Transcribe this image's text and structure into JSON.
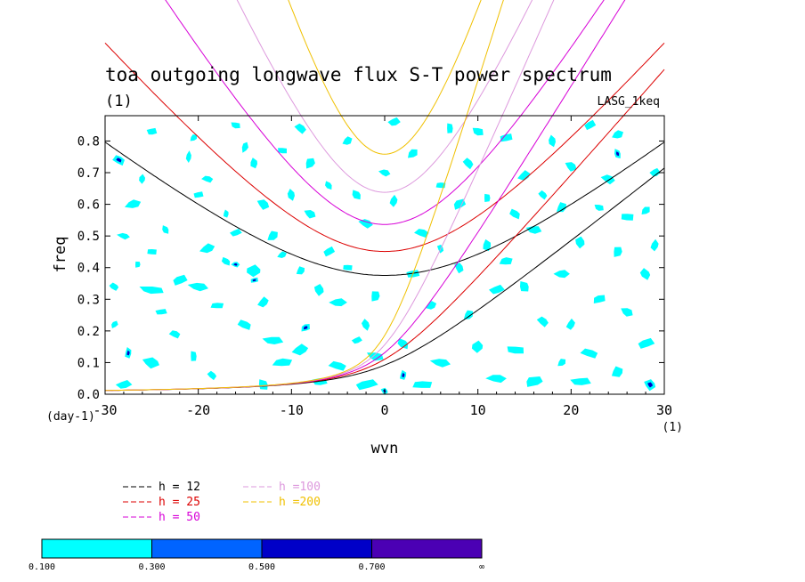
{
  "chart_data": {
    "type": "heatmap",
    "title": "toa outgoing longwave flux S-T power spectrum",
    "subtitle": "(1)",
    "model_label": "LASG_1keq",
    "xlabel": "wvn",
    "ylabel": "freq",
    "x_unit": "(1)",
    "y_unit": "(day-1)",
    "xlim": [
      -30,
      30
    ],
    "ylim": [
      0,
      0.88
    ],
    "x_ticks": [
      -30,
      -20,
      -10,
      0,
      10,
      20,
      30
    ],
    "x_tick_labels": [
      "-30",
      "-20",
      "-10",
      "0",
      "10",
      "20",
      "30"
    ],
    "y_ticks": [
      0,
      0.1,
      0.2,
      0.3,
      0.4,
      0.5,
      0.6,
      0.7,
      0.8
    ],
    "y_tick_labels": [
      "0.0",
      "0.1",
      "0.2",
      "0.3",
      "0.4",
      "0.5",
      "0.6",
      "0.7",
      "0.8"
    ],
    "contour_levels": [
      0.1,
      0.3,
      0.5,
      0.7
    ],
    "colorbar": {
      "labels": [
        "0.100",
        "0.300",
        "0.500",
        "0.700",
        "∞"
      ],
      "colors": [
        "#00ffff",
        "#0064ff",
        "#0000c8",
        "#4b00b4"
      ]
    },
    "dispersion_curves": [
      {
        "name": "h = 12",
        "h": 12,
        "color": "#000000"
      },
      {
        "name": "h = 25",
        "h": 25,
        "color": "#dc0000"
      },
      {
        "name": "h = 50",
        "h": 50,
        "color": "#d700d7"
      },
      {
        "name": "h =100",
        "h": 100,
        "color": "#dd99dd"
      },
      {
        "name": "h =200",
        "h": 200,
        "color": "#f0c000"
      }
    ],
    "blobs": [
      [
        -28.5,
        0.74,
        0.8,
        0.022,
        1
      ],
      [
        -25,
        0.83,
        0.6,
        0.018,
        0
      ],
      [
        -27,
        0.6,
        1.0,
        0.02,
        0
      ],
      [
        -23.5,
        0.52,
        0.6,
        0.016,
        0
      ],
      [
        -28,
        0.5,
        0.8,
        0.014,
        0
      ],
      [
        -25,
        0.45,
        0.6,
        0.016,
        0
      ],
      [
        -26.5,
        0.41,
        0.5,
        0.012,
        0
      ],
      [
        -29,
        0.34,
        0.8,
        0.014,
        0
      ],
      [
        -25,
        0.33,
        1.6,
        0.018,
        0
      ],
      [
        -22,
        0.36,
        1.0,
        0.02,
        0
      ],
      [
        -27.5,
        0.13,
        0.6,
        0.02,
        1
      ],
      [
        -25,
        0.1,
        1.4,
        0.02,
        0
      ],
      [
        -28,
        0.03,
        0.9,
        0.02,
        0
      ],
      [
        -20.5,
        0.81,
        0.5,
        0.015,
        0
      ],
      [
        -21,
        0.75,
        0.5,
        0.02,
        0
      ],
      [
        -19,
        0.68,
        0.7,
        0.016,
        0
      ],
      [
        -20,
        0.63,
        0.6,
        0.016,
        0
      ],
      [
        -19,
        0.46,
        1.0,
        0.02,
        0
      ],
      [
        -17,
        0.42,
        0.7,
        0.016,
        0
      ],
      [
        -20,
        0.34,
        1.2,
        0.02,
        0
      ],
      [
        -18,
        0.28,
        0.8,
        0.016,
        0
      ],
      [
        -20.5,
        0.12,
        0.6,
        0.02,
        0
      ],
      [
        -18.5,
        0.06,
        0.7,
        0.016,
        0
      ],
      [
        -16,
        0.85,
        0.6,
        0.016,
        0
      ],
      [
        -15,
        0.78,
        0.5,
        0.02,
        0
      ],
      [
        -14,
        0.73,
        0.7,
        0.018,
        0
      ],
      [
        -13,
        0.6,
        0.9,
        0.02,
        0
      ],
      [
        -16,
        0.51,
        0.7,
        0.016,
        0
      ],
      [
        -12,
        0.5,
        0.8,
        0.02,
        0
      ],
      [
        -14,
        0.39,
        1.4,
        0.02,
        0
      ],
      [
        -16,
        0.41,
        0.5,
        0.014,
        1
      ],
      [
        -14,
        0.36,
        0.5,
        0.013,
        1
      ],
      [
        -13,
        0.29,
        0.8,
        0.02,
        0
      ],
      [
        -15,
        0.22,
        1.0,
        0.02,
        0
      ],
      [
        -12,
        0.17,
        1.2,
        0.02,
        0
      ],
      [
        -11,
        0.1,
        1.2,
        0.02,
        0
      ],
      [
        -13,
        0.03,
        0.9,
        0.02,
        0
      ],
      [
        -9,
        0.84,
        0.8,
        0.02,
        0
      ],
      [
        -11,
        0.77,
        0.6,
        0.016,
        0
      ],
      [
        -8,
        0.73,
        0.8,
        0.02,
        0
      ],
      [
        -10,
        0.63,
        0.7,
        0.02,
        0
      ],
      [
        -8,
        0.57,
        0.8,
        0.018,
        0
      ],
      [
        -6,
        0.45,
        0.7,
        0.02,
        0
      ],
      [
        -9,
        0.39,
        0.7,
        0.016,
        0
      ],
      [
        -7,
        0.33,
        0.9,
        0.02,
        0
      ],
      [
        -5,
        0.29,
        1.0,
        0.02,
        0
      ],
      [
        -8.5,
        0.21,
        0.6,
        0.018,
        1
      ],
      [
        -9,
        0.14,
        1.3,
        0.02,
        0
      ],
      [
        -5,
        0.09,
        1.2,
        0.02,
        0
      ],
      [
        -7,
        0.04,
        0.9,
        0.02,
        0
      ],
      [
        -4,
        0.8,
        0.6,
        0.02,
        0
      ],
      [
        -3,
        0.63,
        0.8,
        0.018,
        0
      ],
      [
        -2,
        0.54,
        0.9,
        0.02,
        0
      ],
      [
        -4,
        0.4,
        0.6,
        0.016,
        0
      ],
      [
        -1,
        0.31,
        0.8,
        0.02,
        0
      ],
      [
        -2,
        0.22,
        0.7,
        0.02,
        0
      ],
      [
        -1,
        0.12,
        1.1,
        0.02,
        0
      ],
      [
        -2,
        0.03,
        1.5,
        0.02,
        0
      ],
      [
        2,
        0.06,
        0.6,
        0.018,
        1
      ],
      [
        0,
        0.01,
        0.6,
        0.012,
        1
      ],
      [
        1,
        0.86,
        0.7,
        0.02,
        0
      ],
      [
        3,
        0.76,
        0.7,
        0.02,
        0
      ],
      [
        1,
        0.61,
        0.7,
        0.02,
        0
      ],
      [
        4,
        0.51,
        0.9,
        0.02,
        0
      ],
      [
        3,
        0.38,
        0.8,
        0.02,
        0
      ],
      [
        5,
        0.28,
        0.7,
        0.018,
        0
      ],
      [
        2,
        0.16,
        0.9,
        0.02,
        0
      ],
      [
        6,
        0.1,
        1.2,
        0.02,
        0
      ],
      [
        4,
        0.03,
        1.2,
        0.02,
        0
      ],
      [
        7,
        0.84,
        0.6,
        0.02,
        0
      ],
      [
        9,
        0.73,
        0.8,
        0.02,
        0
      ],
      [
        10,
        0.83,
        0.7,
        0.02,
        0
      ],
      [
        8,
        0.6,
        0.9,
        0.02,
        0
      ],
      [
        11,
        0.47,
        0.8,
        0.02,
        0
      ],
      [
        8,
        0.4,
        0.7,
        0.02,
        0
      ],
      [
        12,
        0.33,
        0.9,
        0.02,
        0
      ],
      [
        9,
        0.25,
        0.7,
        0.02,
        0
      ],
      [
        10,
        0.15,
        1.1,
        0.02,
        0
      ],
      [
        12,
        0.05,
        1.2,
        0.02,
        0
      ],
      [
        13,
        0.81,
        0.8,
        0.02,
        0
      ],
      [
        15,
        0.69,
        0.9,
        0.02,
        0
      ],
      [
        14,
        0.57,
        0.8,
        0.02,
        0
      ],
      [
        16,
        0.52,
        0.9,
        0.02,
        0
      ],
      [
        13,
        0.42,
        0.8,
        0.02,
        0
      ],
      [
        15,
        0.34,
        0.9,
        0.02,
        0
      ],
      [
        17,
        0.23,
        0.8,
        0.02,
        0
      ],
      [
        14,
        0.14,
        1.1,
        0.02,
        0
      ],
      [
        16,
        0.04,
        1.4,
        0.02,
        0
      ],
      [
        18,
        0.8,
        0.7,
        0.02,
        0
      ],
      [
        20,
        0.72,
        0.8,
        0.02,
        0
      ],
      [
        22,
        0.85,
        0.7,
        0.02,
        0
      ],
      [
        19,
        0.59,
        0.8,
        0.02,
        0
      ],
      [
        21,
        0.48,
        0.9,
        0.02,
        0
      ],
      [
        19,
        0.38,
        0.9,
        0.02,
        0
      ],
      [
        23,
        0.3,
        0.8,
        0.02,
        0
      ],
      [
        20,
        0.22,
        0.7,
        0.02,
        0
      ],
      [
        22,
        0.13,
        1.2,
        0.02,
        0
      ],
      [
        21,
        0.04,
        1.2,
        0.02,
        0
      ],
      [
        25,
        0.82,
        0.7,
        0.02,
        0
      ],
      [
        25,
        0.76,
        0.6,
        0.018,
        1
      ],
      [
        24,
        0.68,
        0.9,
        0.02,
        0
      ],
      [
        26,
        0.56,
        0.8,
        0.02,
        0
      ],
      [
        25,
        0.45,
        0.8,
        0.02,
        0
      ],
      [
        28,
        0.38,
        0.9,
        0.02,
        0
      ],
      [
        26,
        0.26,
        0.8,
        0.02,
        0
      ],
      [
        28,
        0.16,
        1.1,
        0.02,
        0
      ],
      [
        25,
        0.07,
        1.0,
        0.02,
        0
      ],
      [
        28.5,
        0.03,
        1.0,
        0.02,
        1
      ],
      [
        29,
        0.7,
        0.6,
        0.02,
        0
      ],
      [
        28,
        0.58,
        0.6,
        0.018,
        0
      ],
      [
        29,
        0.47,
        0.7,
        0.02,
        0
      ],
      [
        -22.5,
        0.19,
        0.7,
        0.018,
        0
      ],
      [
        -24,
        0.26,
        0.7,
        0.015,
        0
      ],
      [
        -11,
        0.44,
        0.6,
        0.015,
        0
      ],
      [
        -6,
        0.66,
        0.6,
        0.016,
        0
      ],
      [
        0,
        0.7,
        0.7,
        0.016,
        0
      ],
      [
        6,
        0.66,
        0.6,
        0.016,
        0
      ],
      [
        11,
        0.62,
        0.6,
        0.016,
        0
      ],
      [
        17,
        0.63,
        0.7,
        0.016,
        0
      ],
      [
        23,
        0.59,
        0.6,
        0.016,
        0
      ],
      [
        -29,
        0.22,
        0.5,
        0.014,
        0
      ],
      [
        -17,
        0.57,
        0.5,
        0.014,
        0
      ],
      [
        6,
        0.46,
        0.5,
        0.016,
        0
      ],
      [
        -3,
        0.17,
        0.6,
        0.016,
        0
      ],
      [
        19,
        0.1,
        0.6,
        0.016,
        0
      ],
      [
        -26,
        0.68,
        0.6,
        0.016,
        0
      ]
    ]
  }
}
